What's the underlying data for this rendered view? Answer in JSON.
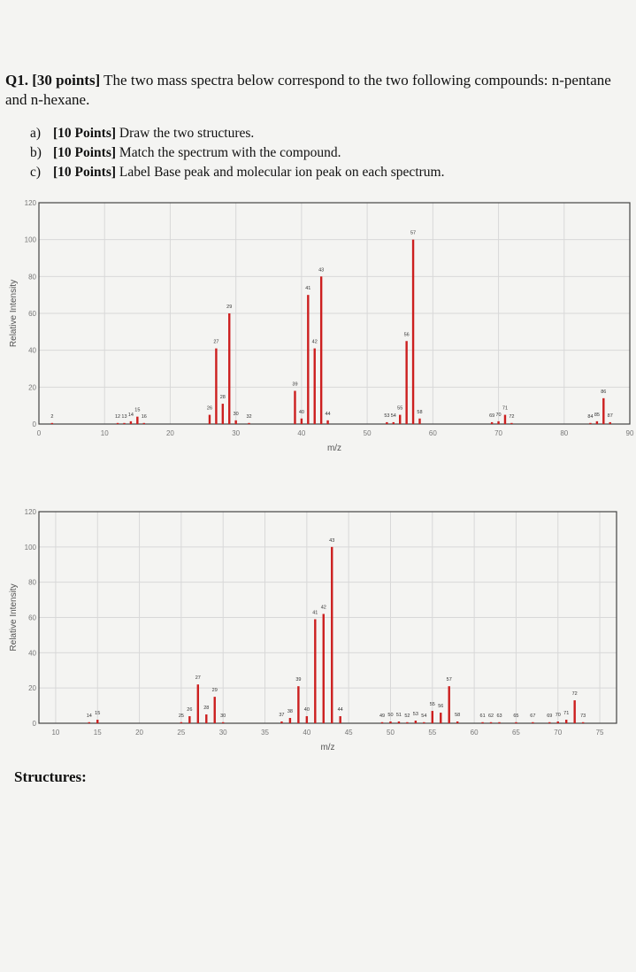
{
  "question": {
    "number": "Q1.",
    "points": "[30 points]",
    "text": " The two mass spectra below correspond to the two following compounds: n-pentane and n-hexane."
  },
  "parts": [
    {
      "label": "a)",
      "points": "[10 Points]",
      "text": " Draw the two structures."
    },
    {
      "label": "b)",
      "points": "[10 Points]",
      "text": " Match the spectrum with the compound."
    },
    {
      "label": "c)",
      "points": "[10 Points]",
      "text": " Label Base peak and molecular ion peak on each spectrum."
    }
  ],
  "structures_label": "Structures:",
  "colors": {
    "peak": "#cc1f1f",
    "grid": "#d8d8d8",
    "frame": "#444444"
  },
  "chart_data": [
    {
      "type": "bar",
      "title": "",
      "xlabel": "m/z",
      "ylabel": "Relative Intensity",
      "xlim": [
        0,
        90
      ],
      "ylim": [
        0,
        120
      ],
      "xticks": [
        0,
        10,
        20,
        30,
        40,
        50,
        60,
        70,
        80,
        90
      ],
      "yticks": [
        0,
        20,
        40,
        60,
        80,
        100,
        120
      ],
      "grid": true,
      "peaks": [
        {
          "mz": 2,
          "value": 0.5,
          "label": "2"
        },
        {
          "mz": 12,
          "value": 0.5,
          "label": "12"
        },
        {
          "mz": 13,
          "value": 0.5,
          "label": "13"
        },
        {
          "mz": 14,
          "value": 1.5,
          "label": "14"
        },
        {
          "mz": 15,
          "value": 4,
          "label": "15"
        },
        {
          "mz": 16,
          "value": 0.5,
          "label": "16"
        },
        {
          "mz": 26,
          "value": 5,
          "label": "26"
        },
        {
          "mz": 27,
          "value": 41,
          "label": "27"
        },
        {
          "mz": 28,
          "value": 11,
          "label": "28"
        },
        {
          "mz": 29,
          "value": 60,
          "label": "29"
        },
        {
          "mz": 30,
          "value": 2,
          "label": "30"
        },
        {
          "mz": 32,
          "value": 0.5,
          "label": "32"
        },
        {
          "mz": 39,
          "value": 18,
          "label": "39"
        },
        {
          "mz": 40,
          "value": 3,
          "label": "40"
        },
        {
          "mz": 41,
          "value": 70,
          "label": "41"
        },
        {
          "mz": 42,
          "value": 41,
          "label": "42"
        },
        {
          "mz": 43,
          "value": 80,
          "label": "43"
        },
        {
          "mz": 44,
          "value": 2,
          "label": "44"
        },
        {
          "mz": 53,
          "value": 1,
          "label": "53"
        },
        {
          "mz": 54,
          "value": 1,
          "label": "54"
        },
        {
          "mz": 55,
          "value": 5,
          "label": "55"
        },
        {
          "mz": 56,
          "value": 45,
          "label": "56"
        },
        {
          "mz": 57,
          "value": 100,
          "label": "57"
        },
        {
          "mz": 58,
          "value": 3,
          "label": "58"
        },
        {
          "mz": 69,
          "value": 1,
          "label": "69"
        },
        {
          "mz": 70,
          "value": 1.5,
          "label": "70"
        },
        {
          "mz": 71,
          "value": 5,
          "label": "71"
        },
        {
          "mz": 72,
          "value": 0.5,
          "label": "72"
        },
        {
          "mz": 84,
          "value": 0.5,
          "label": "84"
        },
        {
          "mz": 85,
          "value": 1.5,
          "label": "85"
        },
        {
          "mz": 86,
          "value": 14,
          "label": "86"
        },
        {
          "mz": 87,
          "value": 1,
          "label": "87"
        }
      ]
    },
    {
      "type": "bar",
      "title": "",
      "xlabel": "m/z",
      "ylabel": "Relative Intensity",
      "xlim": [
        8,
        77
      ],
      "ylim": [
        0,
        120
      ],
      "xticks": [
        10,
        15,
        20,
        25,
        30,
        35,
        40,
        45,
        50,
        55,
        60,
        65,
        70,
        75
      ],
      "yticks": [
        0,
        20,
        40,
        60,
        80,
        100,
        120
      ],
      "grid": true,
      "peaks": [
        {
          "mz": 14,
          "value": 0.5,
          "label": "14"
        },
        {
          "mz": 15,
          "value": 2,
          "label": "15"
        },
        {
          "mz": 25,
          "value": 0.5,
          "label": "25"
        },
        {
          "mz": 26,
          "value": 4,
          "label": "26"
        },
        {
          "mz": 27,
          "value": 22,
          "label": "27"
        },
        {
          "mz": 28,
          "value": 5,
          "label": "28"
        },
        {
          "mz": 29,
          "value": 15,
          "label": "29"
        },
        {
          "mz": 30,
          "value": 0.5,
          "label": "30"
        },
        {
          "mz": 37,
          "value": 1,
          "label": "37"
        },
        {
          "mz": 38,
          "value": 3,
          "label": "38"
        },
        {
          "mz": 39,
          "value": 21,
          "label": "39"
        },
        {
          "mz": 40,
          "value": 4,
          "label": "40"
        },
        {
          "mz": 41,
          "value": 59,
          "label": "41"
        },
        {
          "mz": 42,
          "value": 62,
          "label": "42"
        },
        {
          "mz": 43,
          "value": 100,
          "label": "43"
        },
        {
          "mz": 44,
          "value": 4,
          "label": "44"
        },
        {
          "mz": 49,
          "value": 0.5,
          "label": "49"
        },
        {
          "mz": 50,
          "value": 1,
          "label": "50"
        },
        {
          "mz": 51,
          "value": 1,
          "label": "51"
        },
        {
          "mz": 52,
          "value": 0.5,
          "label": "52"
        },
        {
          "mz": 53,
          "value": 1.5,
          "label": "53"
        },
        {
          "mz": 54,
          "value": 0.5,
          "label": "54"
        },
        {
          "mz": 55,
          "value": 7,
          "label": "55"
        },
        {
          "mz": 56,
          "value": 6,
          "label": "56"
        },
        {
          "mz": 57,
          "value": 21,
          "label": "57"
        },
        {
          "mz": 58,
          "value": 1,
          "label": "58"
        },
        {
          "mz": 61,
          "value": 0.5,
          "label": "61"
        },
        {
          "mz": 62,
          "value": 0.5,
          "label": "62"
        },
        {
          "mz": 63,
          "value": 0.5,
          "label": "63"
        },
        {
          "mz": 65,
          "value": 0.5,
          "label": "65"
        },
        {
          "mz": 67,
          "value": 0.5,
          "label": "67"
        },
        {
          "mz": 69,
          "value": 0.5,
          "label": "69"
        },
        {
          "mz": 70,
          "value": 1,
          "label": "70"
        },
        {
          "mz": 71,
          "value": 2,
          "label": "71"
        },
        {
          "mz": 72,
          "value": 13,
          "label": "72"
        },
        {
          "mz": 73,
          "value": 0.5,
          "label": "73"
        }
      ]
    }
  ]
}
